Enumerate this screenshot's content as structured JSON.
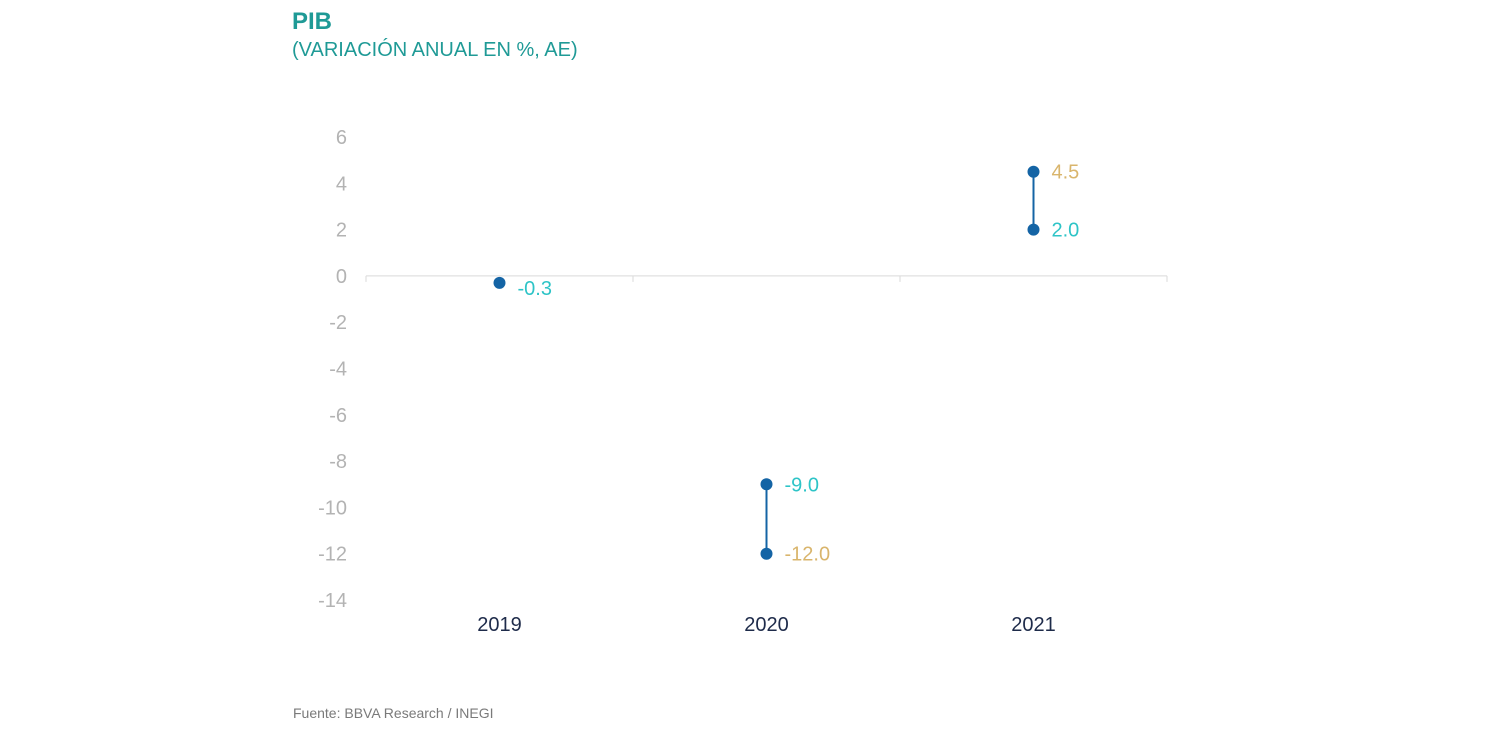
{
  "chart_data": {
    "type": "dot-range",
    "title": "PIB",
    "subtitle": "(VARIACIÓN ANUAL EN %, AE)",
    "categories": [
      "2019",
      "2020",
      "2021"
    ],
    "ylim": [
      -14,
      6
    ],
    "yticks": [
      6,
      4,
      2,
      0,
      -2,
      -4,
      -6,
      -8,
      -10,
      -12,
      -14
    ],
    "points": [
      {
        "category": "2019",
        "values": [
          {
            "value": -0.3,
            "label": "-0.3",
            "label_color": "#2ec4c7"
          }
        ]
      },
      {
        "category": "2020",
        "values": [
          {
            "value": -9.0,
            "label": "-9.0",
            "label_color": "#2ec4c7"
          },
          {
            "value": -12.0,
            "label": "-12.0",
            "label_color": "#d9b56c"
          }
        ]
      },
      {
        "category": "2021",
        "values": [
          {
            "value": 4.5,
            "label": "4.5",
            "label_color": "#d9b56c"
          },
          {
            "value": 2.0,
            "label": "2.0",
            "label_color": "#2ec4c7"
          }
        ]
      }
    ],
    "colors": {
      "marker": "#1464a5",
      "axis": "#d9d9d9",
      "ytick": "#b3b3b3",
      "xtick": "#1e2b4a"
    },
    "grid": false,
    "source": "Fuente: BBVA Research / INEGI"
  }
}
